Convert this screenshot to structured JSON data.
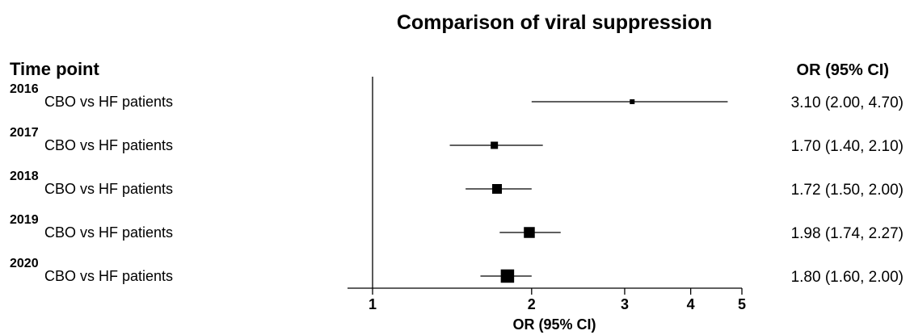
{
  "chart_data": {
    "type": "forest",
    "title": "Comparison of viral suppression",
    "left_header": "Time point",
    "right_header": "OR (95% CI)",
    "xlabel": "OR (95% CI)",
    "x_scale": "log",
    "xlim": [
      1,
      5
    ],
    "x_ticks": [
      "1",
      "2",
      "3",
      "4",
      "5"
    ],
    "x_tick_values": [
      1,
      2,
      3,
      4,
      5
    ],
    "null_line": 1,
    "rows": [
      {
        "group": "2016",
        "label": "CBO vs HF patients",
        "or": 3.1,
        "lower": 2.0,
        "upper": 4.7,
        "ci_text": "3.10 (2.00, 4.70)",
        "weight": 1
      },
      {
        "group": "2017",
        "label": "CBO vs HF patients",
        "or": 1.7,
        "lower": 1.4,
        "upper": 2.1,
        "ci_text": "1.70 (1.40, 2.10)",
        "weight": 2
      },
      {
        "group": "2018",
        "label": "CBO vs HF patients",
        "or": 1.72,
        "lower": 1.5,
        "upper": 2.0,
        "ci_text": "1.72 (1.50, 2.00)",
        "weight": 3
      },
      {
        "group": "2019",
        "label": "CBO vs HF patients",
        "or": 1.98,
        "lower": 1.74,
        "upper": 2.27,
        "ci_text": "1.98 (1.74, 2.27)",
        "weight": 3.5
      },
      {
        "group": "2020",
        "label": "CBO vs HF patients",
        "or": 1.8,
        "lower": 1.6,
        "upper": 2.0,
        "ci_text": "1.80 (1.60, 2.00)",
        "weight": 4.5
      }
    ]
  }
}
